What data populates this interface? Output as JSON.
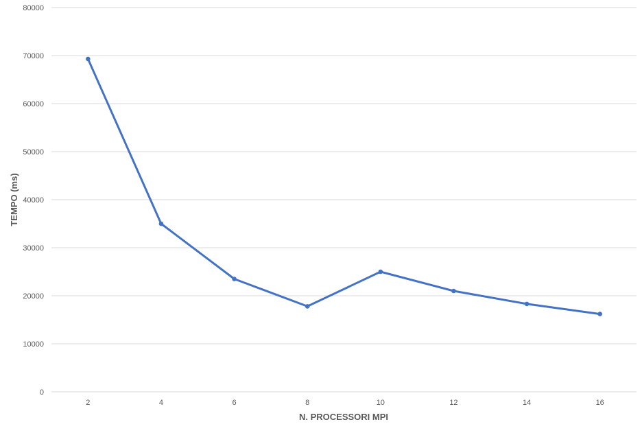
{
  "chart_data": {
    "type": "line",
    "title": "",
    "xlabel": "N. PROCESSORI MPI",
    "ylabel": "TEMPO (ms)",
    "x": [
      2,
      4,
      6,
      8,
      10,
      12,
      14,
      16
    ],
    "x_tick_labels": [
      "2",
      "4",
      "6",
      "8",
      "10",
      "12",
      "14",
      "16"
    ],
    "y_ticks": [
      0,
      10000,
      20000,
      30000,
      40000,
      50000,
      60000,
      70000,
      80000
    ],
    "y_tick_labels": [
      "0",
      "10000",
      "20000",
      "30000",
      "40000",
      "50000",
      "60000",
      "70000",
      "80000"
    ],
    "ylim": [
      0,
      80000
    ],
    "grid": true,
    "legend": "none",
    "series": [
      {
        "color": "#4472c4",
        "values": [
          69300,
          35000,
          23500,
          17800,
          25000,
          21000,
          18300,
          16200
        ]
      }
    ]
  }
}
